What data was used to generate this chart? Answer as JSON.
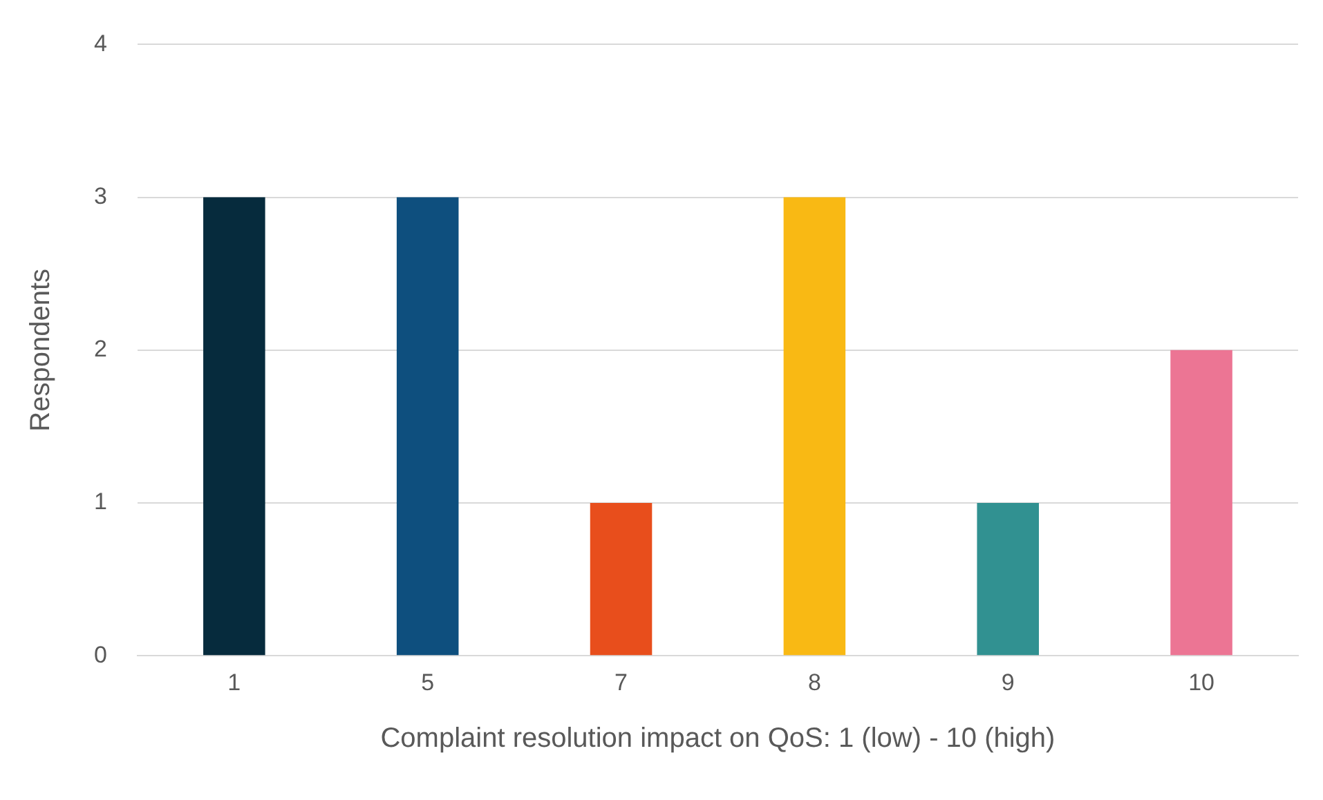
{
  "chart_data": {
    "type": "bar",
    "xlabel": "Complaint resolution impact on QoS: 1 (low) - 10 (high)",
    "ylabel": "Respondents",
    "categories": [
      "1",
      "5",
      "7",
      "8",
      "9",
      "10"
    ],
    "values": [
      3,
      3,
      1,
      3,
      1,
      2
    ],
    "colors": [
      "#062b3d",
      "#0e4f7e",
      "#e84e1c",
      "#f9b914",
      "#319191",
      "#ec7594"
    ],
    "ylim": [
      0,
      4
    ],
    "yticks": [
      0,
      1,
      2,
      3,
      4
    ],
    "grid": "y",
    "legend": false
  }
}
